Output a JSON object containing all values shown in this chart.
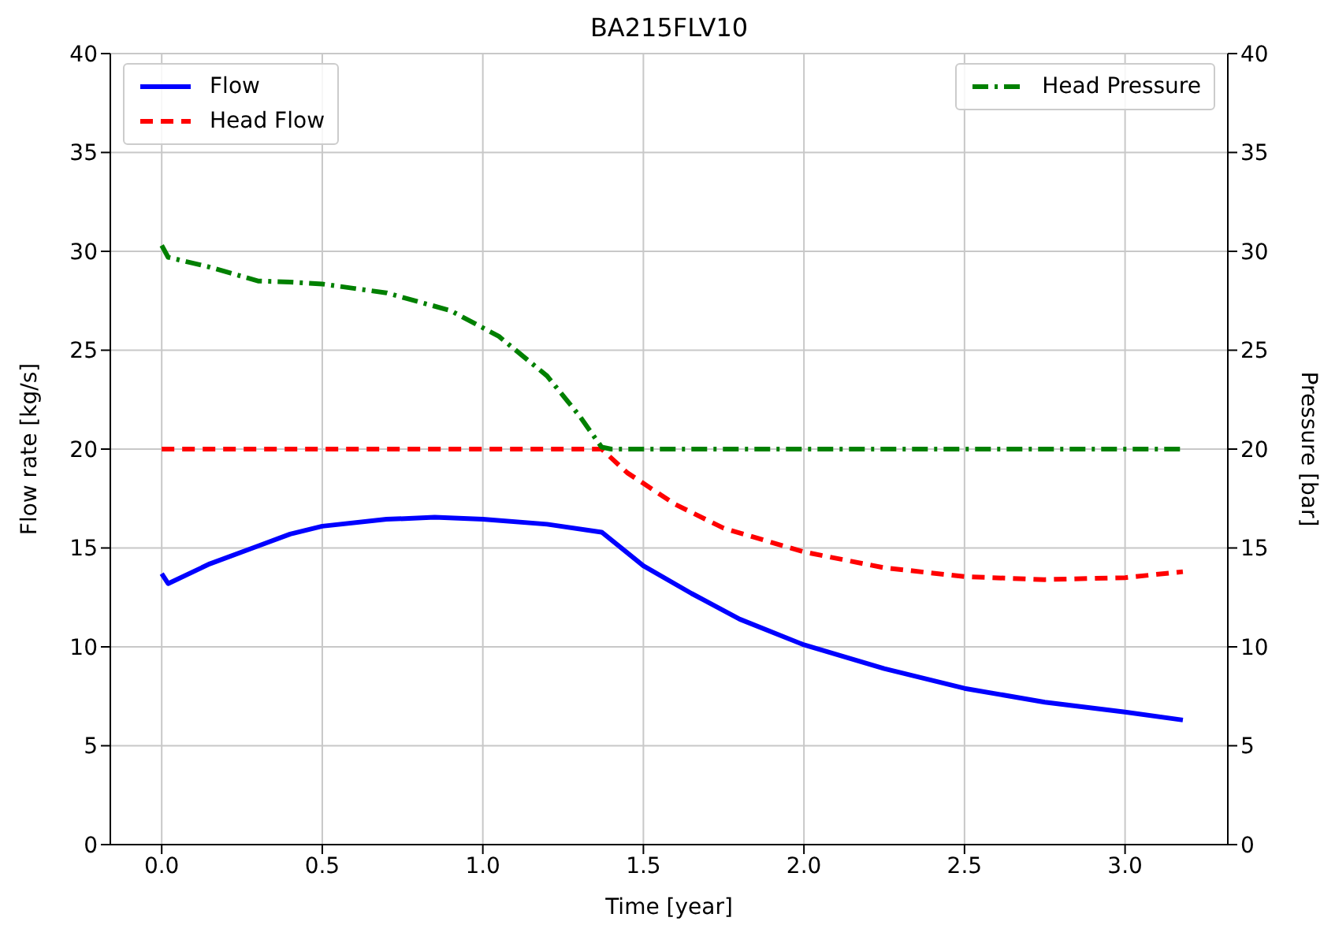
{
  "chart_data": {
    "type": "line",
    "title": "BA215FLV10",
    "xlabel": "Time [year]",
    "ylabel": "Flow rate [kg/s]",
    "y2label": "Pressure [bar]",
    "xlim": [
      -0.16,
      3.32
    ],
    "xticks": [
      {
        "value": 0,
        "label": "0.0"
      },
      {
        "value": 0.5,
        "label": "0.5"
      },
      {
        "value": 1,
        "label": "1.0"
      },
      {
        "value": 1.5,
        "label": "1.5"
      },
      {
        "value": 2,
        "label": "2.0"
      },
      {
        "value": 2.5,
        "label": "2.5"
      },
      {
        "value": 3,
        "label": "3.0"
      }
    ],
    "ylim": [
      0,
      40
    ],
    "yticks": [
      0,
      5,
      10,
      15,
      20,
      25,
      30,
      35,
      40
    ],
    "y2lim": [
      0,
      40
    ],
    "y2ticks": [
      0,
      5,
      10,
      15,
      20,
      25,
      30,
      35,
      40
    ],
    "grid": true,
    "legend": "top left",
    "marker": "none",
    "series": [
      {
        "name": "Flow",
        "color": "#0000ff",
        "line_style": "solid",
        "x": [
          0,
          0.02,
          0.15,
          0.3,
          0.4,
          0.5,
          0.7,
          0.85,
          1.0,
          1.2,
          1.37,
          1.5,
          1.65,
          1.8,
          2.0,
          2.25,
          2.5,
          2.75,
          3.0,
          3.18
        ],
        "values": [
          13.7,
          13.2,
          14.2,
          15.1,
          15.7,
          16.1,
          16.45,
          16.55,
          16.45,
          16.2,
          15.8,
          14.1,
          12.7,
          11.4,
          10.1,
          8.9,
          7.9,
          7.2,
          6.7,
          6.3
        ]
      },
      {
        "name": "Head Flow",
        "color": "#ff0000",
        "line_style": "dashed",
        "x": [
          0,
          0.5,
          1.0,
          1.37,
          1.45,
          1.6,
          1.75,
          2.0,
          2.25,
          2.5,
          2.75,
          3.0,
          3.18
        ],
        "values": [
          20,
          20,
          20,
          20,
          18.8,
          17.2,
          16.0,
          14.8,
          14.0,
          13.55,
          13.4,
          13.5,
          13.8
        ]
      },
      {
        "name": "Head Pressure",
        "color": "#008000",
        "line_style": "dashdot",
        "axis": "y2",
        "x": [
          0,
          0.02,
          0.15,
          0.3,
          0.4,
          0.5,
          0.7,
          0.9,
          1.05,
          1.2,
          1.3,
          1.37,
          1.4,
          2.0,
          2.5,
          3.0,
          3.18
        ],
        "values": [
          30.3,
          29.7,
          29.2,
          28.5,
          28.45,
          28.35,
          27.9,
          27.0,
          25.7,
          23.7,
          21.7,
          20.1,
          20,
          20,
          20,
          20,
          20
        ]
      }
    ]
  }
}
